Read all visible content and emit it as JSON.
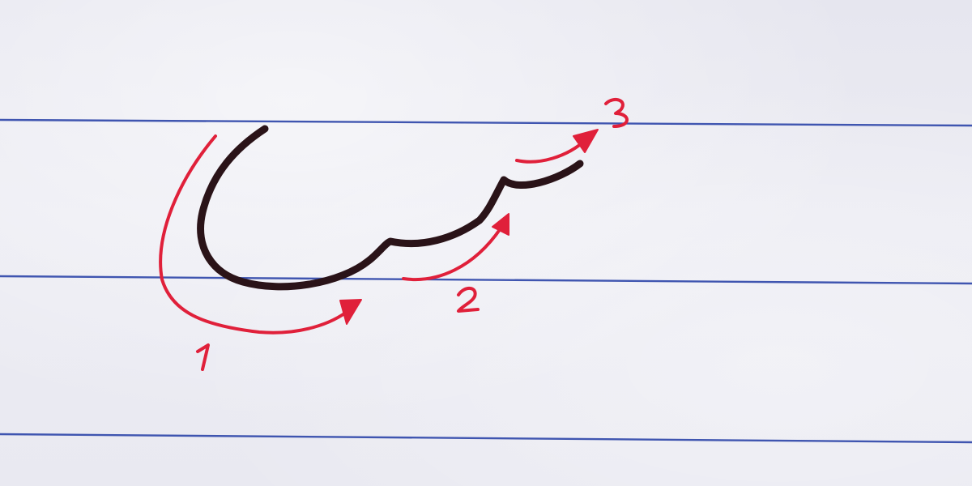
{
  "image": {
    "subject": "handwritten-letter-stroke-order-guide",
    "step_numbers": [
      "1",
      "2",
      "3"
    ],
    "colors": {
      "paper": "#eaeaf1",
      "ruled_line": "#3f55b0",
      "letter_ink": "#2a1318",
      "guide_ink": "#e0203a"
    }
  }
}
